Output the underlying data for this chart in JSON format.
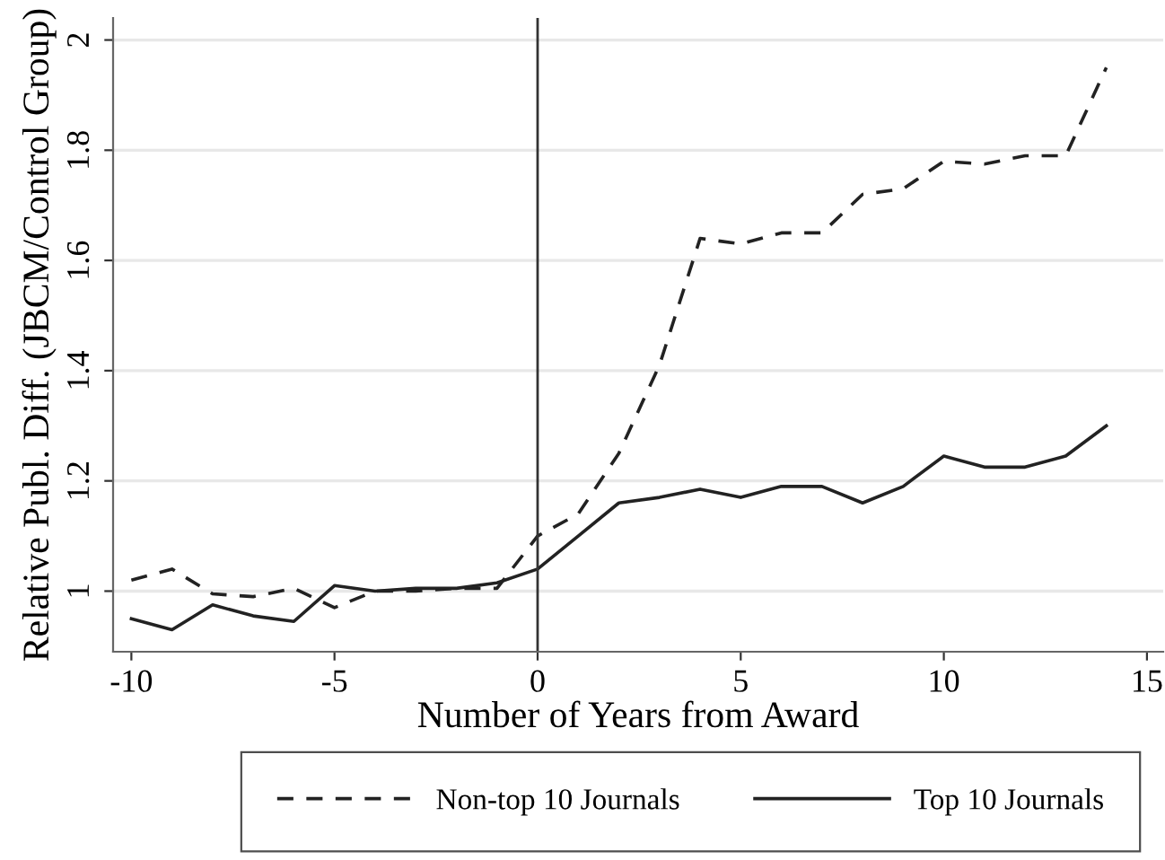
{
  "chart_data": {
    "type": "line",
    "xlabel": "Number of Years from Award",
    "ylabel": "Relative Publ. Diff. (JBCM/Control Group)",
    "x": [
      -10,
      -9,
      -8,
      -7,
      -6,
      -5,
      -4,
      -3,
      -2,
      -1,
      0,
      1,
      2,
      3,
      4,
      5,
      6,
      7,
      8,
      9,
      10,
      11,
      12,
      13,
      14
    ],
    "series": [
      {
        "name": "Non-top 10 Journals",
        "color": "#222222",
        "line_style": "dashed",
        "values": [
          1.02,
          1.04,
          0.995,
          0.99,
          1.005,
          0.97,
          1.0,
          1.0,
          1.005,
          1.005,
          1.1,
          1.14,
          1.25,
          1.41,
          1.64,
          1.63,
          1.65,
          1.65,
          1.72,
          1.73,
          1.78,
          1.775,
          1.79,
          1.79,
          1.95
        ]
      },
      {
        "name": "Top 10 Journals",
        "color": "#222222",
        "line_style": "solid",
        "values": [
          0.95,
          0.93,
          0.975,
          0.955,
          0.945,
          1.01,
          1.0,
          1.005,
          1.005,
          1.015,
          1.04,
          1.1,
          1.16,
          1.17,
          1.185,
          1.17,
          1.19,
          1.19,
          1.16,
          1.19,
          1.245,
          1.225,
          1.225,
          1.245,
          1.3
        ]
      }
    ],
    "xlim": [
      -10.45,
      15.4
    ],
    "ylim": [
      0.89,
      2.04
    ],
    "xticks": [
      -10,
      -5,
      0,
      5,
      10,
      15
    ],
    "yticks": [
      1,
      1.2,
      1.4,
      1.6,
      1.8,
      2
    ],
    "ref_lines": [
      {
        "axis": "x",
        "value": 0,
        "color": "#333333"
      }
    ],
    "grid": "y",
    "legend": "bottom",
    "marker": "none"
  }
}
